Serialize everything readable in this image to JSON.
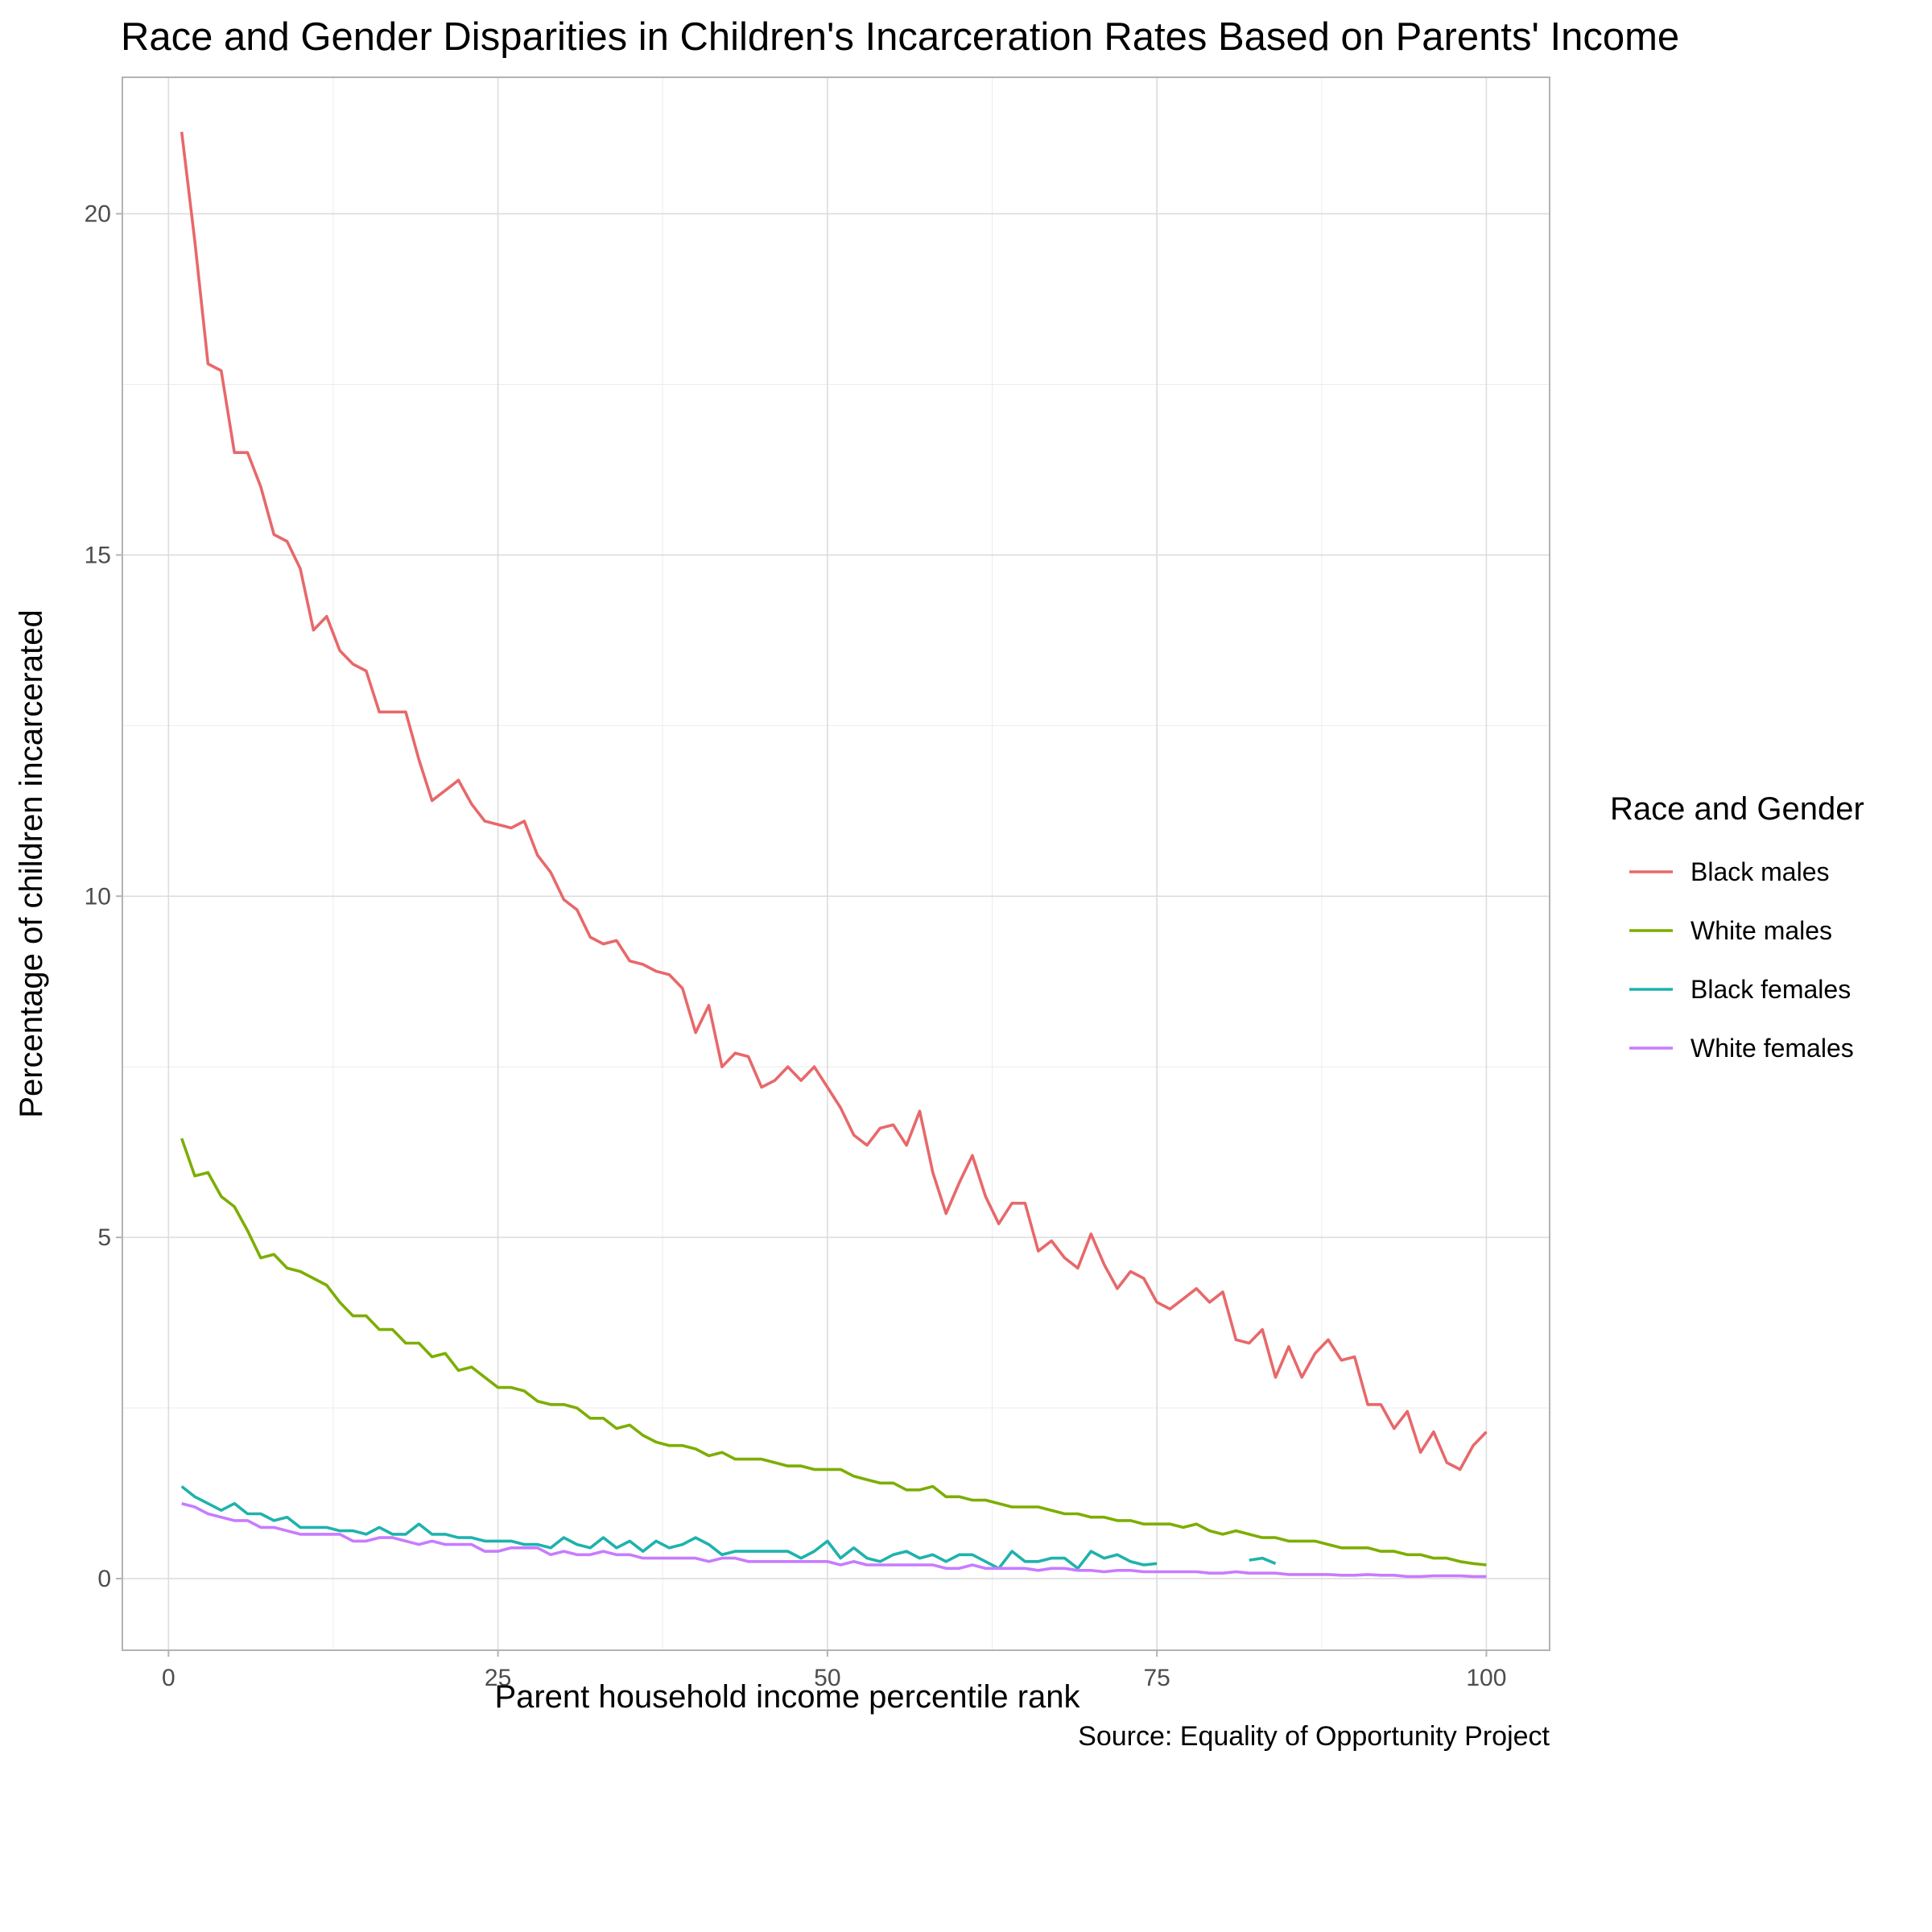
{
  "chart_data": {
    "type": "line",
    "title": "Race and Gender Disparities in Children's Incarceration Rates Based on Parents' Income",
    "xlabel": "Parent household income percentile rank",
    "ylabel": "Percentage of children incarcerated",
    "caption": "Source: Equality of Opportunity Project",
    "legend_title": "Race and Gender",
    "legend_position": "right",
    "grid": true,
    "xlim": [
      -3.5,
      104.8
    ],
    "ylim": [
      -1.05,
      22.0
    ],
    "x_ticks": [
      0,
      25,
      50,
      75,
      100
    ],
    "y_ticks": [
      0,
      5,
      10,
      15,
      20
    ],
    "x_tick_labels": [
      "0",
      "25",
      "50",
      "75",
      "100"
    ],
    "y_tick_labels": [
      "0",
      "5",
      "10",
      "15",
      "20"
    ],
    "x": [
      1,
      2,
      3,
      4,
      5,
      6,
      7,
      8,
      9,
      10,
      11,
      12,
      13,
      14,
      15,
      16,
      17,
      18,
      19,
      20,
      21,
      22,
      23,
      24,
      25,
      26,
      27,
      28,
      29,
      30,
      31,
      32,
      33,
      34,
      35,
      36,
      37,
      38,
      39,
      40,
      41,
      42,
      43,
      44,
      45,
      46,
      47,
      48,
      49,
      50,
      51,
      52,
      53,
      54,
      55,
      56,
      57,
      58,
      59,
      60,
      61,
      62,
      63,
      64,
      65,
      66,
      67,
      68,
      69,
      70,
      71,
      72,
      73,
      74,
      75,
      76,
      77,
      78,
      79,
      80,
      81,
      82,
      83,
      84,
      85,
      86,
      87,
      88,
      89,
      90,
      91,
      92,
      93,
      94,
      95,
      96,
      97,
      98,
      99,
      100
    ],
    "series": [
      {
        "name": "Black males",
        "color": "#E8686A",
        "values": [
          21.2,
          19.6,
          17.8,
          17.7,
          16.5,
          16.5,
          16.0,
          15.3,
          15.2,
          14.8,
          13.9,
          14.1,
          13.6,
          13.4,
          13.3,
          12.7,
          12.7,
          12.7,
          12.0,
          11.4,
          11.55,
          11.7,
          11.35,
          11.1,
          11.05,
          11.0,
          11.1,
          10.6,
          10.35,
          9.95,
          9.8,
          9.4,
          9.3,
          9.35,
          9.05,
          9.0,
          8.9,
          8.85,
          8.65,
          8.0,
          8.4,
          7.5,
          7.7,
          7.65,
          7.2,
          7.3,
          7.5,
          7.3,
          7.5,
          7.2,
          6.9,
          6.5,
          6.35,
          6.6,
          6.65,
          6.35,
          6.85,
          5.95,
          5.35,
          5.8,
          6.2,
          5.6,
          5.2,
          5.5,
          5.5,
          4.8,
          4.95,
          4.7,
          4.55,
          5.05,
          4.6,
          4.25,
          4.5,
          4.4,
          4.05,
          3.95,
          4.1,
          4.25,
          4.05,
          4.2,
          3.5,
          3.45,
          3.65,
          2.95,
          3.4,
          2.95,
          3.3,
          3.5,
          3.2,
          3.25,
          2.55,
          2.55,
          2.2,
          2.45,
          1.85,
          2.15,
          1.7,
          1.6,
          1.95,
          2.15
        ]
      },
      {
        "name": "White males",
        "color": "#7CAE00",
        "values": [
          6.45,
          5.9,
          5.95,
          5.6,
          5.45,
          5.1,
          4.7,
          4.75,
          4.55,
          4.5,
          4.4,
          4.3,
          4.05,
          3.85,
          3.85,
          3.65,
          3.65,
          3.45,
          3.45,
          3.25,
          3.3,
          3.05,
          3.1,
          2.95,
          2.8,
          2.8,
          2.75,
          2.6,
          2.55,
          2.55,
          2.5,
          2.35,
          2.35,
          2.2,
          2.25,
          2.1,
          2.0,
          1.95,
          1.95,
          1.9,
          1.8,
          1.85,
          1.75,
          1.75,
          1.75,
          1.7,
          1.65,
          1.65,
          1.6,
          1.6,
          1.6,
          1.5,
          1.45,
          1.4,
          1.4,
          1.3,
          1.3,
          1.35,
          1.2,
          1.2,
          1.15,
          1.15,
          1.1,
          1.05,
          1.05,
          1.05,
          1.0,
          0.95,
          0.95,
          0.9,
          0.9,
          0.85,
          0.85,
          0.8,
          0.8,
          0.8,
          0.75,
          0.8,
          0.7,
          0.65,
          0.7,
          0.65,
          0.6,
          0.6,
          0.55,
          0.55,
          0.55,
          0.5,
          0.45,
          0.45,
          0.45,
          0.4,
          0.4,
          0.35,
          0.35,
          0.3,
          0.3,
          0.25,
          0.22,
          0.2
        ]
      },
      {
        "name": "Black females",
        "color": "#1FB2AD",
        "values": [
          1.35,
          1.2,
          1.1,
          1.0,
          1.1,
          0.95,
          0.95,
          0.85,
          0.9,
          0.75,
          0.75,
          0.75,
          0.7,
          0.7,
          0.65,
          0.75,
          0.65,
          0.65,
          0.8,
          0.65,
          0.65,
          0.6,
          0.6,
          0.55,
          0.55,
          0.55,
          0.5,
          0.5,
          0.45,
          0.6,
          0.5,
          0.45,
          0.6,
          0.45,
          0.55,
          0.4,
          0.55,
          0.45,
          0.5,
          0.6,
          0.5,
          0.35,
          0.4,
          0.4,
          0.4,
          0.4,
          0.4,
          0.3,
          0.4,
          0.55,
          0.3,
          0.45,
          0.3,
          0.25,
          0.35,
          0.4,
          0.3,
          0.35,
          0.25,
          0.35,
          0.35,
          0.25,
          0.15,
          0.4,
          0.25,
          0.25,
          0.3,
          0.3,
          0.15,
          0.4,
          0.3,
          0.35,
          0.25,
          0.2,
          0.22,
          null,
          null,
          null,
          null,
          null,
          null,
          0.27,
          0.3,
          0.22,
          null,
          null,
          null,
          null,
          null,
          null,
          null,
          null,
          null,
          null,
          null,
          null,
          null,
          null,
          null,
          null
        ]
      },
      {
        "name": "White females",
        "color": "#C77CFF",
        "values": [
          1.1,
          1.05,
          0.95,
          0.9,
          0.85,
          0.85,
          0.75,
          0.75,
          0.7,
          0.65,
          0.65,
          0.65,
          0.65,
          0.55,
          0.55,
          0.6,
          0.6,
          0.55,
          0.5,
          0.55,
          0.5,
          0.5,
          0.5,
          0.4,
          0.4,
          0.45,
          0.45,
          0.45,
          0.35,
          0.4,
          0.35,
          0.35,
          0.4,
          0.35,
          0.35,
          0.3,
          0.3,
          0.3,
          0.3,
          0.3,
          0.25,
          0.3,
          0.3,
          0.25,
          0.25,
          0.25,
          0.25,
          0.25,
          0.25,
          0.25,
          0.2,
          0.25,
          0.2,
          0.2,
          0.2,
          0.2,
          0.2,
          0.2,
          0.15,
          0.15,
          0.2,
          0.15,
          0.15,
          0.15,
          0.15,
          0.12,
          0.15,
          0.15,
          0.12,
          0.12,
          0.1,
          0.12,
          0.12,
          0.1,
          0.1,
          0.1,
          0.1,
          0.1,
          0.08,
          0.08,
          0.1,
          0.08,
          0.08,
          0.08,
          0.06,
          0.06,
          0.06,
          0.06,
          0.05,
          0.05,
          0.06,
          0.05,
          0.05,
          0.03,
          0.03,
          0.04,
          0.04,
          0.04,
          0.03,
          0.03
        ]
      }
    ]
  }
}
